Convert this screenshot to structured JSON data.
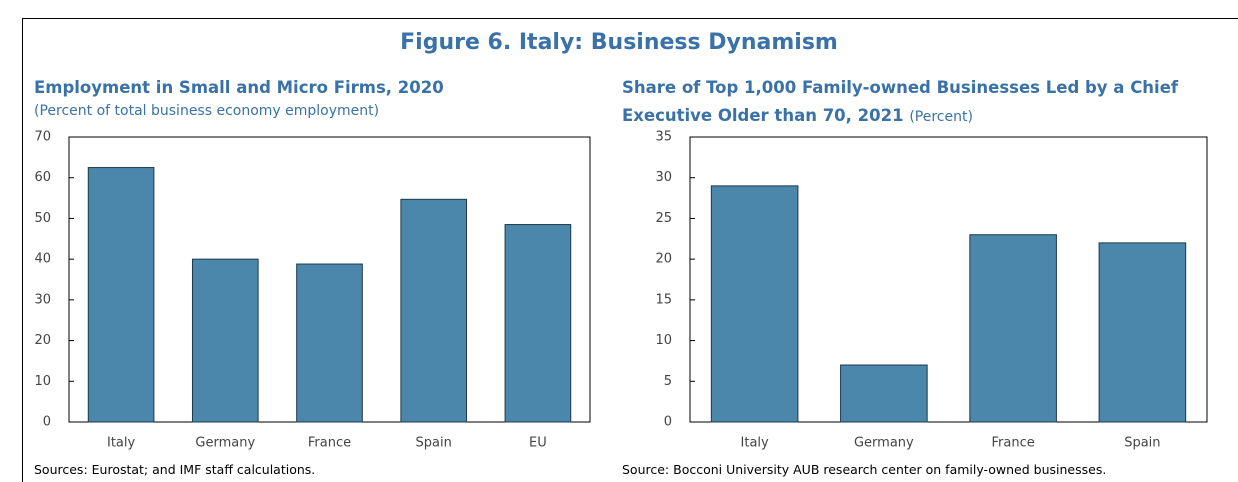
{
  "header": {
    "title": "Figure 6. Italy: Business Dynamism"
  },
  "chart_data": [
    {
      "type": "bar",
      "title": "Employment in Small and Micro Firms, 2020",
      "subtitle": "(Percent of total business economy employment)",
      "categories": [
        "Italy",
        "Germany",
        "France",
        "Spain",
        "EU"
      ],
      "values": [
        62.5,
        40,
        38.8,
        54.7,
        48.5
      ],
      "color": "#4a87aa",
      "ylim": [
        0,
        70
      ],
      "yticks": [
        0,
        10,
        20,
        30,
        40,
        50,
        60,
        70
      ],
      "source": "Sources: Eurostat; and IMF staff calculations."
    },
    {
      "type": "bar",
      "title": "Share of Top 1,000 Family-owned Businesses Led by a Chief Executive Older than 70, 2021",
      "subtitle": "(Percent)",
      "categories": [
        "Italy",
        "Germany",
        "France",
        "Spain"
      ],
      "values": [
        29,
        7,
        23,
        22
      ],
      "color": "#4a87aa",
      "ylim": [
        0,
        35
      ],
      "yticks": [
        0,
        5,
        10,
        15,
        20,
        25,
        30,
        35
      ],
      "source": "Source:  Bocconi University AUB research center on family-owned businesses."
    }
  ]
}
